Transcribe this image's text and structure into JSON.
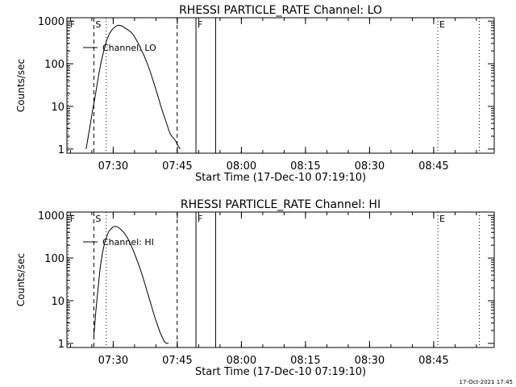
{
  "footer": {
    "stamp": "17-Oct-2021 17:45"
  },
  "chart_data": [
    {
      "type": "line",
      "title": "RHESSI PARTICLE_RATE Channel: LO",
      "xlabel": "Start Time (17-Dec-10 07:19:10)",
      "ylabel": "Counts/sec",
      "yscale": "log",
      "xlim_minutes": [
        0,
        100
      ],
      "ylim": [
        0.8,
        1200
      ],
      "x_ticks": [
        {
          "label": "07:30",
          "minutes": 10.83
        },
        {
          "label": "07:45",
          "minutes": 25.83
        },
        {
          "label": "08:00",
          "minutes": 40.83
        },
        {
          "label": "08:15",
          "minutes": 55.83
        },
        {
          "label": "08:30",
          "minutes": 70.83
        },
        {
          "label": "08:45",
          "minutes": 85.83
        }
      ],
      "y_ticks": [
        {
          "label": "1",
          "value": 1
        },
        {
          "label": "10",
          "value": 10
        },
        {
          "label": "100",
          "value": 100
        },
        {
          "label": "1000",
          "value": 1000
        }
      ],
      "legend": {
        "label": "Channel: LO",
        "position": "top-left"
      },
      "series": [
        {
          "name": "Channel: LO",
          "x": [
            4.5,
            5.0,
            5.5,
            6.0,
            6.5,
            7.0,
            7.5,
            8.0,
            8.5,
            9.0,
            9.5,
            10.0,
            10.5,
            11.0,
            11.5,
            12.0,
            12.5,
            13.0,
            13.5,
            14.0,
            14.5,
            15.0,
            15.5,
            16.0,
            16.5,
            17.0,
            17.5,
            18.0,
            18.5,
            19.0,
            19.5,
            20.0,
            20.5,
            21.0,
            21.5,
            22.0,
            22.5,
            23.0,
            23.5,
            24.0,
            24.5,
            25.0,
            25.5,
            26.0,
            26.5
          ],
          "y": [
            1,
            2,
            4,
            8,
            15,
            30,
            60,
            110,
            180,
            280,
            400,
            520,
            620,
            700,
            760,
            800,
            790,
            760,
            700,
            650,
            600,
            550,
            480,
            400,
            330,
            260,
            200,
            160,
            120,
            90,
            65,
            45,
            32,
            22,
            15,
            10,
            7,
            5,
            3.5,
            2.5,
            2,
            1.8,
            1.5,
            1.2,
            1
          ]
        }
      ],
      "annotations": [
        {
          "label": "S",
          "minutes": 6.3,
          "style": "dashed"
        },
        {
          "label": "",
          "minutes": 25.8,
          "style": "dashed"
        },
        {
          "label": "",
          "minutes": 9.2,
          "style": "dotted"
        },
        {
          "label": "F",
          "minutes": 30.2,
          "style": "solid"
        },
        {
          "label": "",
          "minutes": 34.8,
          "style": "solid"
        },
        {
          "label": "E",
          "minutes": 86.8,
          "style": "dotted"
        },
        {
          "label": "",
          "minutes": 96.5,
          "style": "dotted"
        },
        {
          "label": "F",
          "minutes": 0.3,
          "style": "dotted"
        }
      ]
    },
    {
      "type": "line",
      "title": "RHESSI PARTICLE_RATE Channel: HI",
      "xlabel": "Start Time (17-Dec-10 07:19:10)",
      "ylabel": "Counts/sec",
      "yscale": "log",
      "xlim_minutes": [
        0,
        100
      ],
      "ylim": [
        0.8,
        1200
      ],
      "x_ticks": [
        {
          "label": "07:30",
          "minutes": 10.83
        },
        {
          "label": "07:45",
          "minutes": 25.83
        },
        {
          "label": "08:00",
          "minutes": 40.83
        },
        {
          "label": "08:15",
          "minutes": 55.83
        },
        {
          "label": "08:30",
          "minutes": 70.83
        },
        {
          "label": "08:45",
          "minutes": 85.83
        }
      ],
      "y_ticks": [
        {
          "label": "1",
          "value": 1
        },
        {
          "label": "10",
          "value": 10
        },
        {
          "label": "100",
          "value": 100
        },
        {
          "label": "1000",
          "value": 1000
        }
      ],
      "legend": {
        "label": "Channel: HI",
        "position": "top-left"
      },
      "series": [
        {
          "name": "Channel: HI",
          "x": [
            6.3,
            6.8,
            7.3,
            7.8,
            8.3,
            8.8,
            9.3,
            9.8,
            10.3,
            10.8,
            11.3,
            11.8,
            12.3,
            12.8,
            13.3,
            13.8,
            14.3,
            14.8,
            15.3,
            15.8,
            16.3,
            16.8,
            17.3,
            17.8,
            18.3,
            18.8,
            19.3,
            19.8,
            20.3,
            20.8,
            21.3,
            21.8,
            22.3,
            22.8,
            23.3,
            23.8
          ],
          "y": [
            1.5,
            6,
            20,
            60,
            130,
            220,
            320,
            420,
            480,
            540,
            550,
            540,
            500,
            450,
            400,
            340,
            280,
            220,
            170,
            130,
            95,
            70,
            50,
            35,
            24,
            16,
            11,
            7.5,
            5,
            3.5,
            2.5,
            1.8,
            1.4,
            1.1,
            1,
            1
          ]
        }
      ],
      "annotations": [
        {
          "label": "S",
          "minutes": 6.3,
          "style": "dashed"
        },
        {
          "label": "",
          "minutes": 25.8,
          "style": "dashed"
        },
        {
          "label": "",
          "minutes": 9.2,
          "style": "dotted"
        },
        {
          "label": "F",
          "minutes": 30.2,
          "style": "solid"
        },
        {
          "label": "",
          "minutes": 34.8,
          "style": "solid"
        },
        {
          "label": "E",
          "minutes": 86.8,
          "style": "dotted"
        },
        {
          "label": "",
          "minutes": 96.5,
          "style": "dotted"
        },
        {
          "label": "F",
          "minutes": 0.3,
          "style": "dotted"
        }
      ]
    }
  ]
}
